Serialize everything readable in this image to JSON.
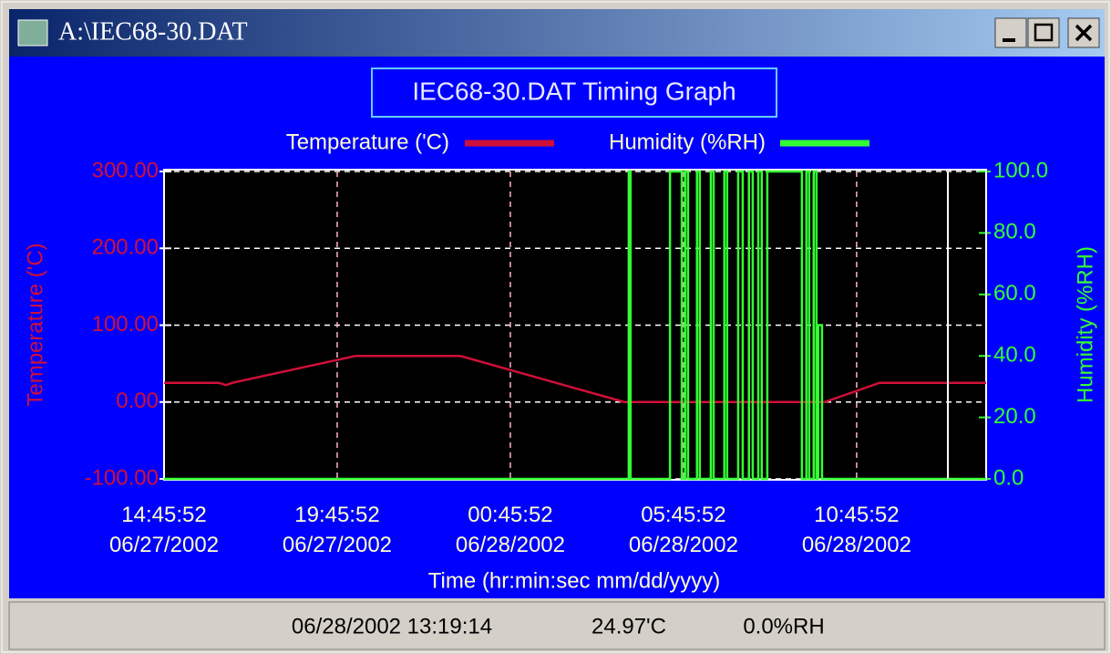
{
  "window": {
    "title": "A:\\IEC68-30.DAT"
  },
  "chart_data": {
    "type": "line",
    "title": "IEC68-30.DAT Timing Graph",
    "x_label": "Time (hr:min:sec mm/dd/yyyy)",
    "y_label": "Temperature ('C)",
    "y2_label": "Humidity (%RH)",
    "xlim": [
      0,
      23.74
    ],
    "xticks": [
      {
        "value": 0,
        "label": "14:45:52\n06/27/2002"
      },
      {
        "value": 5,
        "label": "19:45:52\n06/27/2002"
      },
      {
        "value": 10,
        "label": "00:45:52\n06/28/2002"
      },
      {
        "value": 15,
        "label": "05:45:52\n06/28/2002"
      },
      {
        "value": 20,
        "label": "10:45:52\n06/28/2002"
      }
    ],
    "ylim": [
      -100,
      300
    ],
    "yticks": [
      {
        "value": -100,
        "label": "-100.00"
      },
      {
        "value": 0,
        "label": "0.00"
      },
      {
        "value": 100,
        "label": "100.00"
      },
      {
        "value": 200,
        "label": "200.00"
      },
      {
        "value": 300,
        "label": "300.00"
      }
    ],
    "y2lim": [
      0,
      100
    ],
    "y2ticks": [
      {
        "value": 0,
        "label": "0.0"
      },
      {
        "value": 20,
        "label": "20.0"
      },
      {
        "value": 40,
        "label": "40.0"
      },
      {
        "value": 60,
        "label": "60.0"
      },
      {
        "value": 80,
        "label": "80.0"
      },
      {
        "value": 100,
        "label": "100.0"
      }
    ],
    "grid": true,
    "series": [
      {
        "name": "Temperature ('C)",
        "color": "#d01038",
        "x": [
          0,
          1.58,
          1.79,
          1.97,
          5.53,
          8.55,
          13.29,
          19.08,
          20.66,
          23.74
        ],
        "values": [
          25,
          25,
          22,
          25,
          60,
          60,
          0,
          0,
          25,
          25
        ]
      },
      {
        "name": "Humidity (%RH)",
        "color": "#33ff33",
        "axis": "y2",
        "x": [
          0,
          13.42,
          13.42,
          13.47,
          13.47,
          14.61,
          14.61,
          14.95,
          14.95,
          15.05,
          15.05,
          15.13,
          15.13,
          15.39,
          15.39,
          15.47,
          15.47,
          15.79,
          15.79,
          15.87,
          15.87,
          16.18,
          16.18,
          16.26,
          16.26,
          16.58,
          16.58,
          16.71,
          16.71,
          16.89,
          16.89,
          17.0,
          17.0,
          17.16,
          17.16,
          17.26,
          17.26,
          17.42,
          17.42,
          18.42,
          18.42,
          18.55,
          18.55,
          18.63,
          18.63,
          18.76,
          18.76,
          18.84,
          18.84,
          18.89,
          18.89,
          19.0,
          19.0,
          23.74
        ],
        "values": [
          0,
          0,
          100,
          100,
          0,
          0,
          100,
          100,
          0,
          0,
          100,
          100,
          0,
          0,
          100,
          100,
          0,
          0,
          100,
          100,
          0,
          0,
          100,
          100,
          0,
          0,
          100,
          100,
          0,
          0,
          100,
          100,
          0,
          0,
          100,
          100,
          0,
          0,
          100,
          100,
          0,
          0,
          100,
          100,
          0,
          0,
          100,
          100,
          0,
          0,
          50,
          50,
          0,
          0
        ]
      }
    ]
  },
  "status_bar": {
    "time": "06/28/2002 13:19:14",
    "temperature": "24.97'C",
    "humidity": "0.0%RH"
  }
}
